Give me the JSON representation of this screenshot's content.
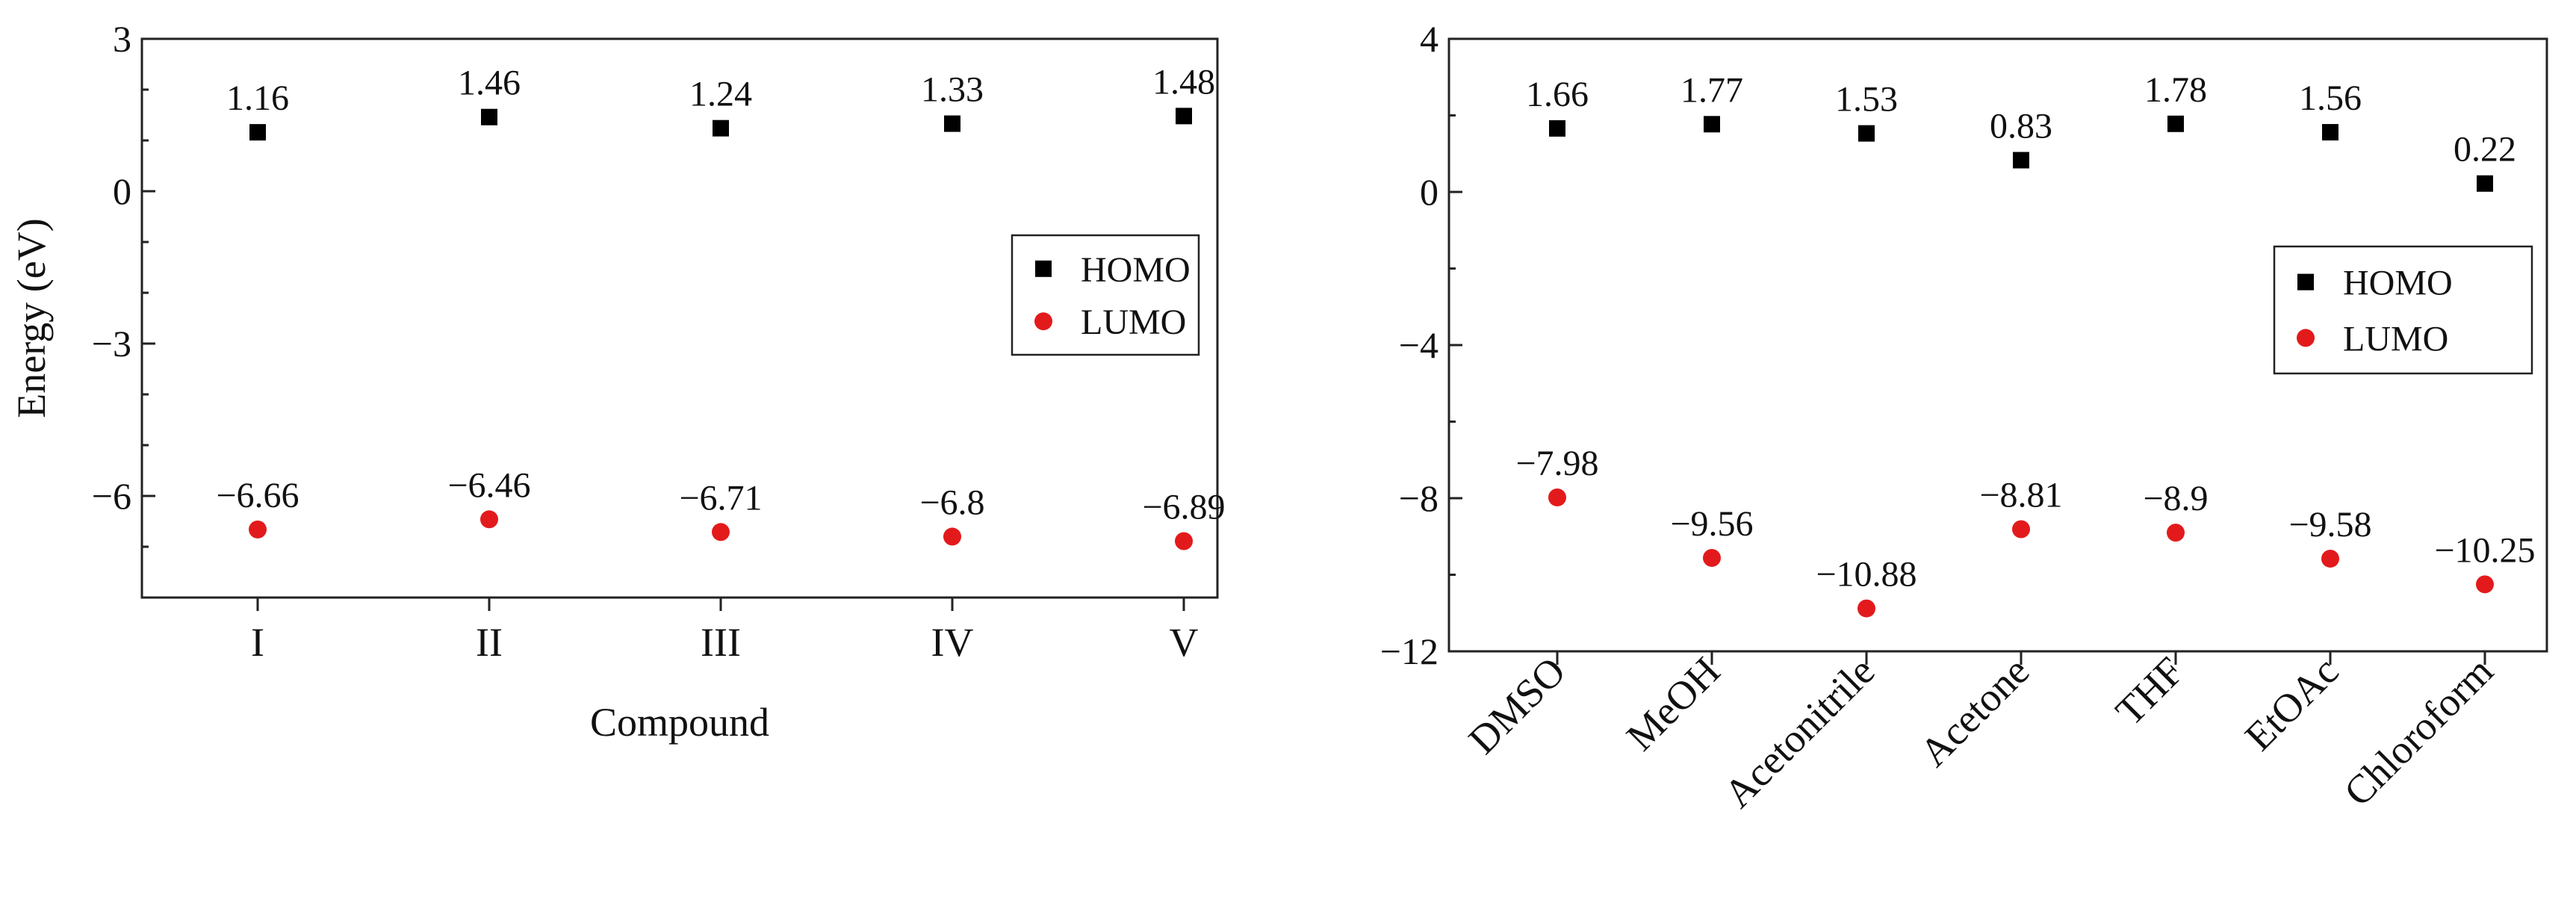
{
  "chart_data": [
    {
      "type": "scatter",
      "title": "",
      "xlabel": "Compound",
      "ylabel": "Energy (eV)",
      "categories": [
        "I",
        "II",
        "III",
        "IV",
        "V"
      ],
      "ylim": [
        -8,
        3
      ],
      "yticks": [
        3,
        0,
        -3,
        -6
      ],
      "ytick_labels": [
        "3",
        "0",
        "−3",
        "−6"
      ],
      "legend": "right",
      "series": [
        {
          "name": "HOMO",
          "marker": "square",
          "color": "#000000",
          "values": [
            1.16,
            1.46,
            1.24,
            1.33,
            1.48
          ],
          "labels": [
            "1.16",
            "1.46",
            "1.24",
            "1.33",
            "1.48"
          ]
        },
        {
          "name": "LUMO",
          "marker": "circle",
          "color": "#e31a1c",
          "values": [
            -6.66,
            -6.46,
            -6.71,
            -6.8,
            -6.89
          ],
          "labels": [
            "−6.66",
            "−6.46",
            "−6.71",
            "−6.8",
            "−6.89"
          ]
        }
      ]
    },
    {
      "type": "scatter",
      "title": "",
      "xlabel": "",
      "ylabel": "",
      "categories": [
        "DMSO",
        "MeOH",
        "Acetonitrile",
        "Acetone",
        "THF",
        "EtOAc",
        "Chloroform"
      ],
      "ylim": [
        -12,
        4
      ],
      "yticks": [
        4,
        0,
        -4,
        -8,
        -12
      ],
      "ytick_labels": [
        "4",
        "0",
        "−4",
        "−8",
        "−12"
      ],
      "legend": "right",
      "series": [
        {
          "name": "HOMO",
          "marker": "square",
          "color": "#000000",
          "values": [
            1.66,
            1.77,
            1.53,
            0.83,
            1.78,
            1.56,
            0.22
          ],
          "labels": [
            "1.66",
            "1.77",
            "1.53",
            "0.83",
            "1.78",
            "1.56",
            "0.22"
          ]
        },
        {
          "name": "LUMO",
          "marker": "circle",
          "color": "#e31a1c",
          "values": [
            -7.98,
            -9.56,
            -10.88,
            -8.81,
            -8.9,
            -9.58,
            -10.25
          ],
          "labels": [
            "−7.98",
            "−9.56",
            "−10.88",
            "−8.81",
            "−8.9",
            "−9.58",
            "−10.25"
          ]
        }
      ]
    }
  ]
}
